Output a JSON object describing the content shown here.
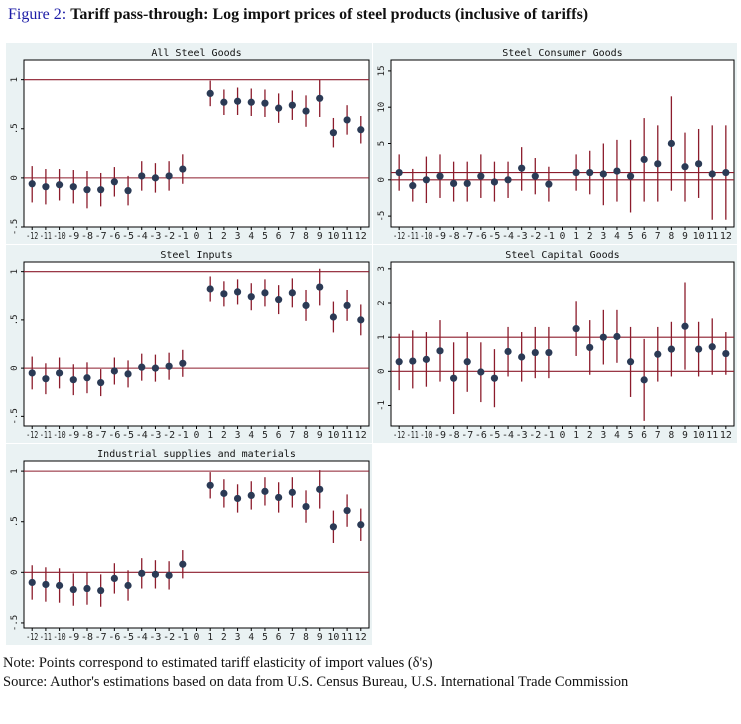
{
  "figure": {
    "label": "Figure 2:",
    "title": "Tariff pass-through: Log import prices of steel products (inclusive of tariffs)"
  },
  "notes": {
    "note": "Note: Points correspond to estimated tariff elasticity of import values (δ's)",
    "source": "Source: Author's estimations based on data from U.S. Census Bureau, U.S. International Trade Commission"
  },
  "colors": {
    "point": "#2b3a55",
    "ci": "#8c1c2c",
    "refline": "#8c1c2c",
    "plotbg": "#ffffff",
    "frame": "#000000",
    "outerbg": "#eaf2f3"
  },
  "chart_data": [
    {
      "type": "scatter",
      "title": "All Steel Goods",
      "x": [
        -12,
        -11,
        -10,
        -9,
        -8,
        -7,
        -6,
        -5,
        -4,
        -3,
        -2,
        -1,
        0,
        1,
        2,
        3,
        4,
        5,
        6,
        7,
        8,
        9,
        10,
        11,
        12
      ],
      "x_ticklabels": [
        "-12",
        "-11",
        "-10",
        "-9",
        "-8",
        "-7",
        "-6",
        "-5",
        "-4",
        "-3",
        "-2",
        "-1",
        "0",
        "1",
        "2",
        "3",
        "4",
        "5",
        "6",
        "7",
        "8",
        "9",
        "10",
        "11",
        "12"
      ],
      "ylim": [
        -0.5,
        1.2
      ],
      "yticks": [
        -0.5,
        0,
        0.5,
        1
      ],
      "y_ticklabels": [
        "-.5",
        "0",
        ".5",
        "1"
      ],
      "reference_lines": [
        0,
        1
      ],
      "points": [
        {
          "x": -12,
          "y": -0.06,
          "lo": -0.25,
          "hi": 0.12
        },
        {
          "x": -11,
          "y": -0.09,
          "lo": -0.27,
          "hi": 0.09
        },
        {
          "x": -10,
          "y": -0.07,
          "lo": -0.23,
          "hi": 0.09
        },
        {
          "x": -9,
          "y": -0.09,
          "lo": -0.26,
          "hi": 0.08
        },
        {
          "x": -8,
          "y": -0.12,
          "lo": -0.31,
          "hi": 0.07
        },
        {
          "x": -7,
          "y": -0.12,
          "lo": -0.29,
          "hi": 0.05
        },
        {
          "x": -6,
          "y": -0.04,
          "lo": -0.19,
          "hi": 0.11
        },
        {
          "x": -5,
          "y": -0.13,
          "lo": -0.28,
          "hi": 0.02
        },
        {
          "x": -4,
          "y": 0.02,
          "lo": -0.13,
          "hi": 0.17
        },
        {
          "x": -3,
          "y": 0.0,
          "lo": -0.15,
          "hi": 0.15
        },
        {
          "x": -2,
          "y": 0.02,
          "lo": -0.13,
          "hi": 0.17
        },
        {
          "x": -1,
          "y": 0.09,
          "lo": -0.06,
          "hi": 0.24
        },
        {
          "x": 1,
          "y": 0.86,
          "lo": 0.73,
          "hi": 0.99
        },
        {
          "x": 2,
          "y": 0.77,
          "lo": 0.64,
          "hi": 0.9
        },
        {
          "x": 3,
          "y": 0.78,
          "lo": 0.64,
          "hi": 0.92
        },
        {
          "x": 4,
          "y": 0.77,
          "lo": 0.63,
          "hi": 0.91
        },
        {
          "x": 5,
          "y": 0.76,
          "lo": 0.62,
          "hi": 0.9
        },
        {
          "x": 6,
          "y": 0.71,
          "lo": 0.56,
          "hi": 0.86
        },
        {
          "x": 7,
          "y": 0.74,
          "lo": 0.59,
          "hi": 0.89
        },
        {
          "x": 8,
          "y": 0.68,
          "lo": 0.52,
          "hi": 0.84
        },
        {
          "x": 9,
          "y": 0.81,
          "lo": 0.62,
          "hi": 1.0
        },
        {
          "x": 10,
          "y": 0.46,
          "lo": 0.31,
          "hi": 0.61
        },
        {
          "x": 11,
          "y": 0.59,
          "lo": 0.44,
          "hi": 0.74
        },
        {
          "x": 12,
          "y": 0.49,
          "lo": 0.35,
          "hi": 0.63
        }
      ]
    },
    {
      "type": "scatter",
      "title": "Steel Consumer Goods",
      "x": [
        -12,
        -11,
        -10,
        -9,
        -8,
        -7,
        -6,
        -5,
        -4,
        -3,
        -2,
        -1,
        0,
        1,
        2,
        3,
        4,
        5,
        6,
        7,
        8,
        9,
        10,
        11,
        12
      ],
      "x_ticklabels": [
        "-12",
        "-11",
        "-10",
        "-9",
        "-8",
        "-7",
        "-6",
        "-5",
        "-4",
        "-3",
        "-2",
        "-1",
        "0",
        "1",
        "2",
        "3",
        "4",
        "5",
        "6",
        "7",
        "8",
        "9",
        "10",
        "11",
        "12"
      ],
      "ylim": [
        -6.5,
        16.5
      ],
      "yticks": [
        -5,
        0,
        5,
        10,
        15
      ],
      "y_ticklabels": [
        "-5",
        "0",
        "5",
        "10",
        "15"
      ],
      "reference_lines": [
        0,
        1
      ],
      "points": [
        {
          "x": -12,
          "y": 1.0,
          "lo": -1.5,
          "hi": 3.5
        },
        {
          "x": -11,
          "y": -0.8,
          "lo": -3.0,
          "hi": 1.5
        },
        {
          "x": -10,
          "y": 0.0,
          "lo": -3.2,
          "hi": 3.2
        },
        {
          "x": -9,
          "y": 0.5,
          "lo": -2.5,
          "hi": 3.5
        },
        {
          "x": -8,
          "y": -0.5,
          "lo": -3.0,
          "hi": 2.5
        },
        {
          "x": -7,
          "y": -0.5,
          "lo": -3.0,
          "hi": 2.5
        },
        {
          "x": -6,
          "y": 0.5,
          "lo": -2.5,
          "hi": 3.5
        },
        {
          "x": -5,
          "y": -0.3,
          "lo": -3.0,
          "hi": 2.5
        },
        {
          "x": -4,
          "y": 0.0,
          "lo": -2.5,
          "hi": 2.5
        },
        {
          "x": -3,
          "y": 1.6,
          "lo": -1.5,
          "hi": 4.5
        },
        {
          "x": -2,
          "y": 0.5,
          "lo": -2.0,
          "hi": 3.0
        },
        {
          "x": -1,
          "y": -0.6,
          "lo": -3.0,
          "hi": 1.8
        },
        {
          "x": 1,
          "y": 1.0,
          "lo": -1.5,
          "hi": 3.5
        },
        {
          "x": 2,
          "y": 1.0,
          "lo": -2.0,
          "hi": 4.0
        },
        {
          "x": 3,
          "y": 0.8,
          "lo": -3.5,
          "hi": 5.0
        },
        {
          "x": 4,
          "y": 1.2,
          "lo": -3.0,
          "hi": 5.5
        },
        {
          "x": 5,
          "y": 0.5,
          "lo": -4.5,
          "hi": 5.5
        },
        {
          "x": 6,
          "y": 2.8,
          "lo": -3.0,
          "hi": 8.5
        },
        {
          "x": 7,
          "y": 2.2,
          "lo": -3.0,
          "hi": 7.5
        },
        {
          "x": 8,
          "y": 5.0,
          "lo": -1.5,
          "hi": 11.5
        },
        {
          "x": 9,
          "y": 1.8,
          "lo": -3.0,
          "hi": 6.5
        },
        {
          "x": 10,
          "y": 2.2,
          "lo": -2.5,
          "hi": 7.0
        },
        {
          "x": 11,
          "y": 0.8,
          "lo": -5.5,
          "hi": 7.5
        },
        {
          "x": 12,
          "y": 1.0,
          "lo": -5.5,
          "hi": 7.5
        }
      ]
    },
    {
      "type": "scatter",
      "title": "Steel Inputs",
      "x": [
        -12,
        -11,
        -10,
        -9,
        -8,
        -7,
        -6,
        -5,
        -4,
        -3,
        -2,
        -1,
        0,
        1,
        2,
        3,
        4,
        5,
        6,
        7,
        8,
        9,
        10,
        11,
        12
      ],
      "x_ticklabels": [
        "-12",
        "-11",
        "-10",
        "-9",
        "-8",
        "-7",
        "-6",
        "-5",
        "-4",
        "-3",
        "-2",
        "-1",
        "0",
        "1",
        "2",
        "3",
        "4",
        "5",
        "6",
        "7",
        "8",
        "9",
        "10",
        "11",
        "12"
      ],
      "ylim": [
        -0.6,
        1.1
      ],
      "yticks": [
        -0.5,
        0,
        0.5,
        1
      ],
      "y_ticklabels": [
        "-.5",
        "0",
        ".5",
        "1"
      ],
      "reference_lines": [
        0,
        1
      ],
      "points": [
        {
          "x": -12,
          "y": -0.05,
          "lo": -0.22,
          "hi": 0.12
        },
        {
          "x": -11,
          "y": -0.11,
          "lo": -0.27,
          "hi": 0.05
        },
        {
          "x": -10,
          "y": -0.05,
          "lo": -0.21,
          "hi": 0.11
        },
        {
          "x": -9,
          "y": -0.12,
          "lo": -0.28,
          "hi": 0.04
        },
        {
          "x": -8,
          "y": -0.1,
          "lo": -0.26,
          "hi": 0.06
        },
        {
          "x": -7,
          "y": -0.15,
          "lo": -0.29,
          "hi": -0.01
        },
        {
          "x": -6,
          "y": -0.03,
          "lo": -0.17,
          "hi": 0.11
        },
        {
          "x": -5,
          "y": -0.06,
          "lo": -0.2,
          "hi": 0.08
        },
        {
          "x": -4,
          "y": 0.01,
          "lo": -0.13,
          "hi": 0.15
        },
        {
          "x": -3,
          "y": 0.0,
          "lo": -0.14,
          "hi": 0.14
        },
        {
          "x": -2,
          "y": 0.02,
          "lo": -0.12,
          "hi": 0.16
        },
        {
          "x": -1,
          "y": 0.05,
          "lo": -0.09,
          "hi": 0.19
        },
        {
          "x": 1,
          "y": 0.82,
          "lo": 0.69,
          "hi": 0.95
        },
        {
          "x": 2,
          "y": 0.77,
          "lo": 0.64,
          "hi": 0.9
        },
        {
          "x": 3,
          "y": 0.79,
          "lo": 0.66,
          "hi": 0.92
        },
        {
          "x": 4,
          "y": 0.74,
          "lo": 0.6,
          "hi": 0.88
        },
        {
          "x": 5,
          "y": 0.78,
          "lo": 0.64,
          "hi": 0.92
        },
        {
          "x": 6,
          "y": 0.71,
          "lo": 0.56,
          "hi": 0.86
        },
        {
          "x": 7,
          "y": 0.78,
          "lo": 0.63,
          "hi": 0.93
        },
        {
          "x": 8,
          "y": 0.65,
          "lo": 0.49,
          "hi": 0.81
        },
        {
          "x": 9,
          "y": 0.84,
          "lo": 0.65,
          "hi": 1.03
        },
        {
          "x": 10,
          "y": 0.53,
          "lo": 0.37,
          "hi": 0.69
        },
        {
          "x": 11,
          "y": 0.65,
          "lo": 0.49,
          "hi": 0.81
        },
        {
          "x": 12,
          "y": 0.5,
          "lo": 0.34,
          "hi": 0.66
        }
      ]
    },
    {
      "type": "scatter",
      "title": "Steel Capital Goods",
      "x": [
        -12,
        -11,
        -10,
        -9,
        -8,
        -7,
        -6,
        -5,
        -4,
        -3,
        -2,
        -1,
        0,
        1,
        2,
        3,
        4,
        5,
        6,
        7,
        8,
        9,
        10,
        11,
        12
      ],
      "x_ticklabels": [
        "-12",
        "-11",
        "-10",
        "-9",
        "-8",
        "-7",
        "-6",
        "-5",
        "-4",
        "-3",
        "-2",
        "-1",
        "0",
        "1",
        "2",
        "3",
        "4",
        "5",
        "6",
        "7",
        "8",
        "9",
        "10",
        "11",
        "12"
      ],
      "ylim": [
        -1.6,
        3.2
      ],
      "yticks": [
        -1,
        0,
        1,
        2,
        3
      ],
      "y_ticklabels": [
        "-1",
        "0",
        "1",
        "2",
        "3"
      ],
      "reference_lines": [
        0,
        1
      ],
      "points": [
        {
          "x": -12,
          "y": 0.28,
          "lo": -0.55,
          "hi": 1.1
        },
        {
          "x": -11,
          "y": 0.3,
          "lo": -0.5,
          "hi": 1.2
        },
        {
          "x": -10,
          "y": 0.35,
          "lo": -0.45,
          "hi": 1.15
        },
        {
          "x": -9,
          "y": 0.6,
          "lo": -0.3,
          "hi": 1.5
        },
        {
          "x": -8,
          "y": -0.2,
          "lo": -1.25,
          "hi": 0.85
        },
        {
          "x": -7,
          "y": 0.28,
          "lo": -0.6,
          "hi": 1.15
        },
        {
          "x": -6,
          "y": -0.02,
          "lo": -0.9,
          "hi": 0.85
        },
        {
          "x": -5,
          "y": -0.2,
          "lo": -1.05,
          "hi": 0.65
        },
        {
          "x": -4,
          "y": 0.58,
          "lo": -0.15,
          "hi": 1.3
        },
        {
          "x": -3,
          "y": 0.42,
          "lo": -0.3,
          "hi": 1.15
        },
        {
          "x": -2,
          "y": 0.55,
          "lo": -0.2,
          "hi": 1.3
        },
        {
          "x": -1,
          "y": 0.55,
          "lo": -0.2,
          "hi": 1.3
        },
        {
          "x": 1,
          "y": 1.25,
          "lo": 0.45,
          "hi": 2.05
        },
        {
          "x": 2,
          "y": 0.7,
          "lo": -0.1,
          "hi": 1.5
        },
        {
          "x": 3,
          "y": 1.0,
          "lo": 0.2,
          "hi": 1.8
        },
        {
          "x": 4,
          "y": 1.02,
          "lo": 0.25,
          "hi": 1.8
        },
        {
          "x": 5,
          "y": 0.28,
          "lo": -0.75,
          "hi": 1.3
        },
        {
          "x": 6,
          "y": -0.25,
          "lo": -1.45,
          "hi": 0.95
        },
        {
          "x": 7,
          "y": 0.5,
          "lo": -0.3,
          "hi": 1.3
        },
        {
          "x": 8,
          "y": 0.65,
          "lo": -0.15,
          "hi": 1.45
        },
        {
          "x": 9,
          "y": 1.32,
          "lo": 0.05,
          "hi": 2.6
        },
        {
          "x": 10,
          "y": 0.65,
          "lo": -0.15,
          "hi": 1.45
        },
        {
          "x": 11,
          "y": 0.72,
          "lo": -0.1,
          "hi": 1.55
        },
        {
          "x": 12,
          "y": 0.52,
          "lo": -0.1,
          "hi": 1.15
        }
      ]
    },
    {
      "type": "scatter",
      "title": "Industrial supplies and materials",
      "x": [
        -12,
        -11,
        -10,
        -9,
        -8,
        -7,
        -6,
        -5,
        -4,
        -3,
        -2,
        -1,
        0,
        1,
        2,
        3,
        4,
        5,
        6,
        7,
        8,
        9,
        10,
        11,
        12
      ],
      "x_ticklabels": [
        "-12",
        "-11",
        "-10",
        "-9",
        "-8",
        "-7",
        "-6",
        "-5",
        "-4",
        "-3",
        "-2",
        "-1",
        "0",
        "1",
        "2",
        "3",
        "4",
        "5",
        "6",
        "7",
        "8",
        "9",
        "10",
        "11",
        "12"
      ],
      "ylim": [
        -0.55,
        1.1
      ],
      "yticks": [
        -0.5,
        0,
        0.5,
        1
      ],
      "y_ticklabels": [
        "-.5",
        "0",
        ".5",
        "1"
      ],
      "reference_lines": [
        0,
        1
      ],
      "points": [
        {
          "x": -12,
          "y": -0.1,
          "lo": -0.27,
          "hi": 0.07
        },
        {
          "x": -11,
          "y": -0.12,
          "lo": -0.29,
          "hi": 0.05
        },
        {
          "x": -10,
          "y": -0.13,
          "lo": -0.3,
          "hi": 0.04
        },
        {
          "x": -9,
          "y": -0.17,
          "lo": -0.33,
          "hi": -0.01
        },
        {
          "x": -8,
          "y": -0.16,
          "lo": -0.32,
          "hi": 0.0
        },
        {
          "x": -7,
          "y": -0.18,
          "lo": -0.34,
          "hi": -0.02
        },
        {
          "x": -6,
          "y": -0.06,
          "lo": -0.21,
          "hi": 0.09
        },
        {
          "x": -5,
          "y": -0.13,
          "lo": -0.28,
          "hi": 0.02
        },
        {
          "x": -4,
          "y": -0.01,
          "lo": -0.16,
          "hi": 0.14
        },
        {
          "x": -3,
          "y": -0.02,
          "lo": -0.16,
          "hi": 0.12
        },
        {
          "x": -2,
          "y": -0.03,
          "lo": -0.17,
          "hi": 0.11
        },
        {
          "x": -1,
          "y": 0.08,
          "lo": -0.06,
          "hi": 0.22
        },
        {
          "x": 1,
          "y": 0.86,
          "lo": 0.73,
          "hi": 0.99
        },
        {
          "x": 2,
          "y": 0.78,
          "lo": 0.64,
          "hi": 0.92
        },
        {
          "x": 3,
          "y": 0.73,
          "lo": 0.59,
          "hi": 0.87
        },
        {
          "x": 4,
          "y": 0.76,
          "lo": 0.62,
          "hi": 0.9
        },
        {
          "x": 5,
          "y": 0.8,
          "lo": 0.66,
          "hi": 0.94
        },
        {
          "x": 6,
          "y": 0.74,
          "lo": 0.59,
          "hi": 0.89
        },
        {
          "x": 7,
          "y": 0.79,
          "lo": 0.64,
          "hi": 0.94
        },
        {
          "x": 8,
          "y": 0.65,
          "lo": 0.49,
          "hi": 0.81
        },
        {
          "x": 9,
          "y": 0.82,
          "lo": 0.63,
          "hi": 1.01
        },
        {
          "x": 10,
          "y": 0.45,
          "lo": 0.29,
          "hi": 0.61
        },
        {
          "x": 11,
          "y": 0.61,
          "lo": 0.45,
          "hi": 0.77
        },
        {
          "x": 12,
          "y": 0.47,
          "lo": 0.31,
          "hi": 0.63
        }
      ]
    }
  ]
}
